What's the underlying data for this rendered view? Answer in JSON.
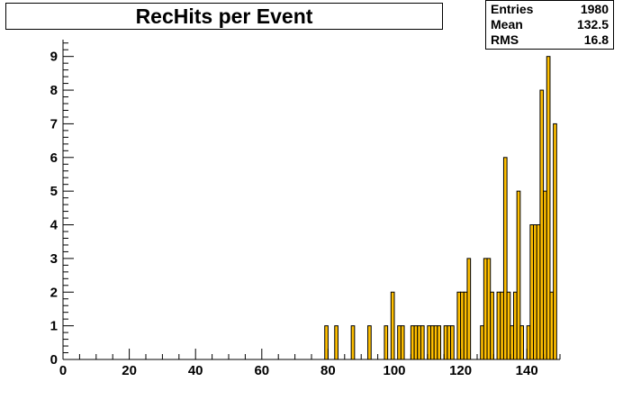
{
  "title": "RecHits per Event",
  "stats": [
    {
      "label": "Entries",
      "value": "1980"
    },
    {
      "label": "Mean",
      "value": "132.5"
    },
    {
      "label": "RMS",
      "value": "16.8"
    }
  ],
  "colors": {
    "fill": "#ffbf00",
    "line": "#000000",
    "frame": "#000000"
  },
  "chart_data": {
    "type": "bar",
    "title": "RecHits per Event",
    "xlabel": "",
    "ylabel": "",
    "xlim": [
      0,
      150
    ],
    "ylim": [
      0,
      9.5
    ],
    "grid": false,
    "legend": "none",
    "bin_width": 1,
    "x_ticks": [
      0,
      20,
      40,
      60,
      80,
      100,
      120,
      140
    ],
    "y_ticks": [
      0,
      1,
      2,
      3,
      4,
      5,
      6,
      7,
      8,
      9
    ],
    "bins": [
      {
        "x": 79,
        "y": 1
      },
      {
        "x": 82,
        "y": 1
      },
      {
        "x": 87,
        "y": 1
      },
      {
        "x": 92,
        "y": 1
      },
      {
        "x": 97,
        "y": 1
      },
      {
        "x": 99,
        "y": 2
      },
      {
        "x": 101,
        "y": 1
      },
      {
        "x": 102,
        "y": 1
      },
      {
        "x": 105,
        "y": 1
      },
      {
        "x": 106,
        "y": 1
      },
      {
        "x": 107,
        "y": 1
      },
      {
        "x": 108,
        "y": 1
      },
      {
        "x": 110,
        "y": 1
      },
      {
        "x": 111,
        "y": 1
      },
      {
        "x": 112,
        "y": 1
      },
      {
        "x": 113,
        "y": 1
      },
      {
        "x": 115,
        "y": 1
      },
      {
        "x": 116,
        "y": 1
      },
      {
        "x": 117,
        "y": 1
      },
      {
        "x": 119,
        "y": 2
      },
      {
        "x": 120,
        "y": 2
      },
      {
        "x": 121,
        "y": 2
      },
      {
        "x": 122,
        "y": 3
      },
      {
        "x": 126,
        "y": 1
      },
      {
        "x": 127,
        "y": 3
      },
      {
        "x": 128,
        "y": 3
      },
      {
        "x": 129,
        "y": 2
      },
      {
        "x": 131,
        "y": 2
      },
      {
        "x": 132,
        "y": 2
      },
      {
        "x": 133,
        "y": 6
      },
      {
        "x": 134,
        "y": 2
      },
      {
        "x": 135,
        "y": 1
      },
      {
        "x": 136,
        "y": 2
      },
      {
        "x": 137,
        "y": 5
      },
      {
        "x": 138,
        "y": 1
      },
      {
        "x": 140,
        "y": 1
      },
      {
        "x": 141,
        "y": 4
      },
      {
        "x": 142,
        "y": 4
      },
      {
        "x": 143,
        "y": 4
      },
      {
        "x": 144,
        "y": 8
      },
      {
        "x": 145,
        "y": 5
      },
      {
        "x": 146,
        "y": 9
      },
      {
        "x": 147,
        "y": 2
      },
      {
        "x": 148,
        "y": 7
      }
    ]
  }
}
